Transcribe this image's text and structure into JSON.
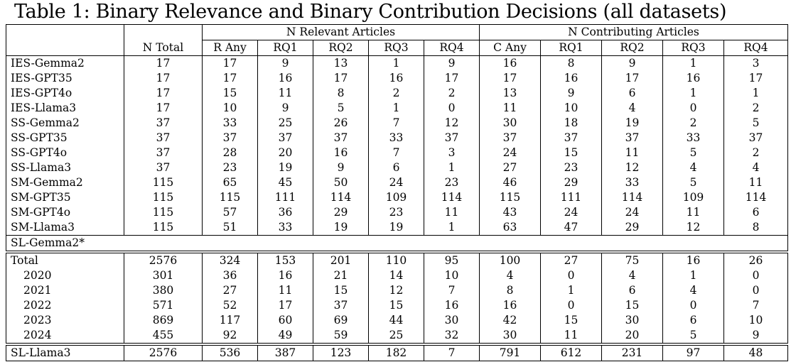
{
  "caption": "Table 1: Binary Relevance and Binary Contribution Decisions (all datasets)",
  "groups": {
    "relevant": "N Relevant Articles",
    "contributing": "N Contributing Articles"
  },
  "columns": [
    "",
    "N Total",
    "R Any",
    "RQ1",
    "RQ2",
    "RQ3",
    "RQ4",
    "C Any",
    "RQ1",
    "RQ2",
    "RQ3",
    "RQ4"
  ],
  "rows_block1": [
    [
      "IES-Gemma2",
      "17",
      "17",
      "9",
      "13",
      "1",
      "9",
      "16",
      "8",
      "9",
      "1",
      "3"
    ],
    [
      "IES-GPT35",
      "17",
      "17",
      "16",
      "17",
      "16",
      "17",
      "17",
      "16",
      "17",
      "16",
      "17"
    ],
    [
      "IES-GPT4o",
      "17",
      "15",
      "11",
      "8",
      "2",
      "2",
      "13",
      "9",
      "6",
      "1",
      "1"
    ],
    [
      "IES-Llama3",
      "17",
      "10",
      "9",
      "5",
      "1",
      "0",
      "11",
      "10",
      "4",
      "0",
      "2"
    ],
    [
      "SS-Gemma2",
      "37",
      "33",
      "25",
      "26",
      "7",
      "12",
      "30",
      "18",
      "19",
      "2",
      "5"
    ],
    [
      "SS-GPT35",
      "37",
      "37",
      "37",
      "37",
      "33",
      "37",
      "37",
      "37",
      "37",
      "33",
      "37"
    ],
    [
      "SS-GPT4o",
      "37",
      "28",
      "20",
      "16",
      "7",
      "3",
      "24",
      "15",
      "11",
      "5",
      "2"
    ],
    [
      "SS-Llama3",
      "37",
      "23",
      "19",
      "9",
      "6",
      "1",
      "27",
      "23",
      "12",
      "4",
      "4"
    ],
    [
      "SM-Gemma2",
      "115",
      "65",
      "45",
      "50",
      "24",
      "23",
      "46",
      "29",
      "33",
      "5",
      "11"
    ],
    [
      "SM-GPT35",
      "115",
      "115",
      "111",
      "114",
      "109",
      "114",
      "115",
      "111",
      "114",
      "109",
      "114"
    ],
    [
      "SM-GPT4o",
      "115",
      "57",
      "36",
      "29",
      "23",
      "11",
      "43",
      "24",
      "24",
      "11",
      "6"
    ],
    [
      "SM-Llama3",
      "115",
      "51",
      "33",
      "19",
      "19",
      "1",
      "63",
      "47",
      "29",
      "12",
      "8"
    ]
  ],
  "sl_gemma_label": "SL-Gemma2*",
  "rows_block2": [
    [
      "Total",
      "2576",
      "324",
      "153",
      "201",
      "110",
      "95",
      "100",
      "27",
      "75",
      "16",
      "26"
    ],
    [
      "2020",
      "301",
      "36",
      "16",
      "21",
      "14",
      "10",
      "4",
      "0",
      "4",
      "1",
      "0"
    ],
    [
      "2021",
      "380",
      "27",
      "11",
      "15",
      "12",
      "7",
      "8",
      "1",
      "6",
      "4",
      "0"
    ],
    [
      "2022",
      "571",
      "52",
      "17",
      "37",
      "15",
      "16",
      "16",
      "0",
      "15",
      "0",
      "7"
    ],
    [
      "2023",
      "869",
      "117",
      "60",
      "69",
      "44",
      "30",
      "42",
      "15",
      "30",
      "6",
      "10"
    ],
    [
      "2024",
      "455",
      "92",
      "49",
      "59",
      "25",
      "32",
      "30",
      "11",
      "20",
      "5",
      "9"
    ]
  ],
  "rows_block3": [
    [
      "SL-Llama3",
      "2576",
      "536",
      "387",
      "123",
      "182",
      "7",
      "791",
      "612",
      "231",
      "97",
      "48"
    ]
  ]
}
